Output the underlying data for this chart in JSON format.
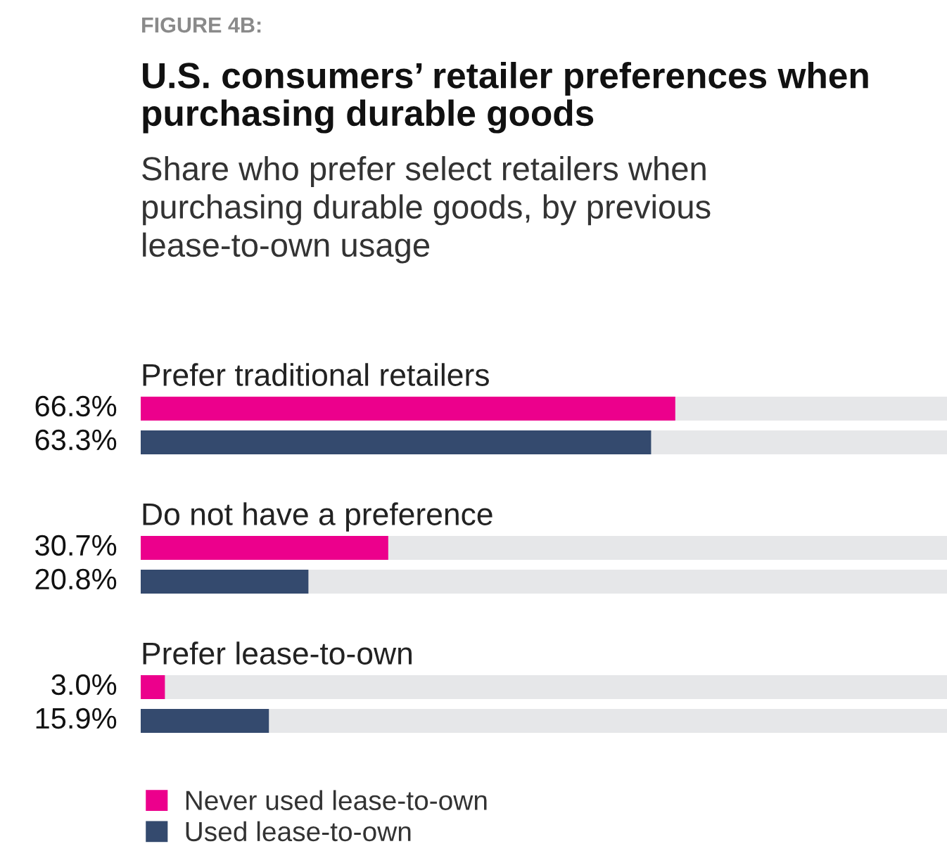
{
  "chart_data": {
    "type": "bar",
    "orientation": "horizontal",
    "title": "U.S. consumers’ retailer preferences when\npurchasing durable goods",
    "subtitle": "Share who prefer select retailers when\npurchasing durable goods, by previous\nlease-to-own usage",
    "annotations": [
      "FIGURE 4B:"
    ],
    "categories": [
      "Prefer traditional retailers",
      "Do not have a preference",
      "Prefer lease-to-own"
    ],
    "series": [
      {
        "name": "Never used lease-to-own",
        "color": "#ec008c",
        "values": [
          66.3,
          30.7,
          3.0
        ],
        "value_labels": [
          "66.3%",
          "30.7%",
          "3.0%"
        ]
      },
      {
        "name": "Used lease-to-own",
        "color": "#344a6e",
        "values": [
          63.3,
          20.8,
          15.9
        ],
        "value_labels": [
          "63.3%",
          "20.8%",
          "15.9%"
        ]
      }
    ],
    "xlim": [
      0,
      100
    ],
    "tick_labels": false,
    "legend": "bottom left"
  }
}
